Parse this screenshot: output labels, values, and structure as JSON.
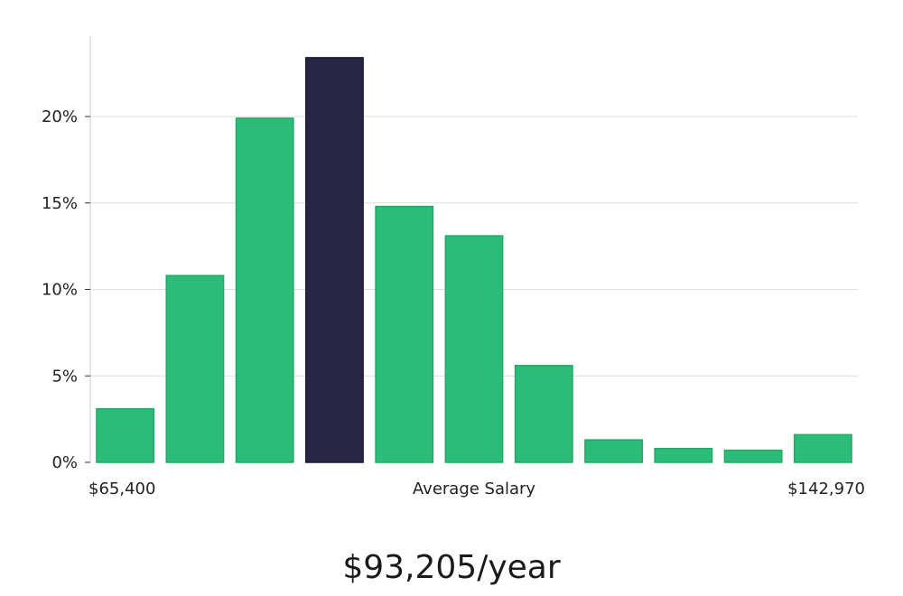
{
  "headline": "$93,205/year",
  "chart_data": {
    "type": "bar",
    "title": "",
    "xlabel": "Average Salary",
    "x_min_label": "$65,400",
    "x_max_label": "$142,970",
    "ylabel": "",
    "ylim": [
      0,
      25
    ],
    "yticks": [
      0,
      5,
      10,
      15,
      20
    ],
    "ytick_labels": [
      "0%",
      "5%",
      "10%",
      "15%",
      "20%"
    ],
    "grid": "horizontal",
    "series": [
      {
        "values": [
          3.1,
          10.8,
          19.9,
          23.4,
          14.8,
          13.1,
          5.6,
          1.3,
          0.8,
          0.7,
          1.6
        ]
      }
    ],
    "highlight_index": 3,
    "colors": {
      "bar": "#2bbd77",
      "highlight": "#282545",
      "grid": "#dddddd",
      "axis": "#cccccc"
    }
  }
}
